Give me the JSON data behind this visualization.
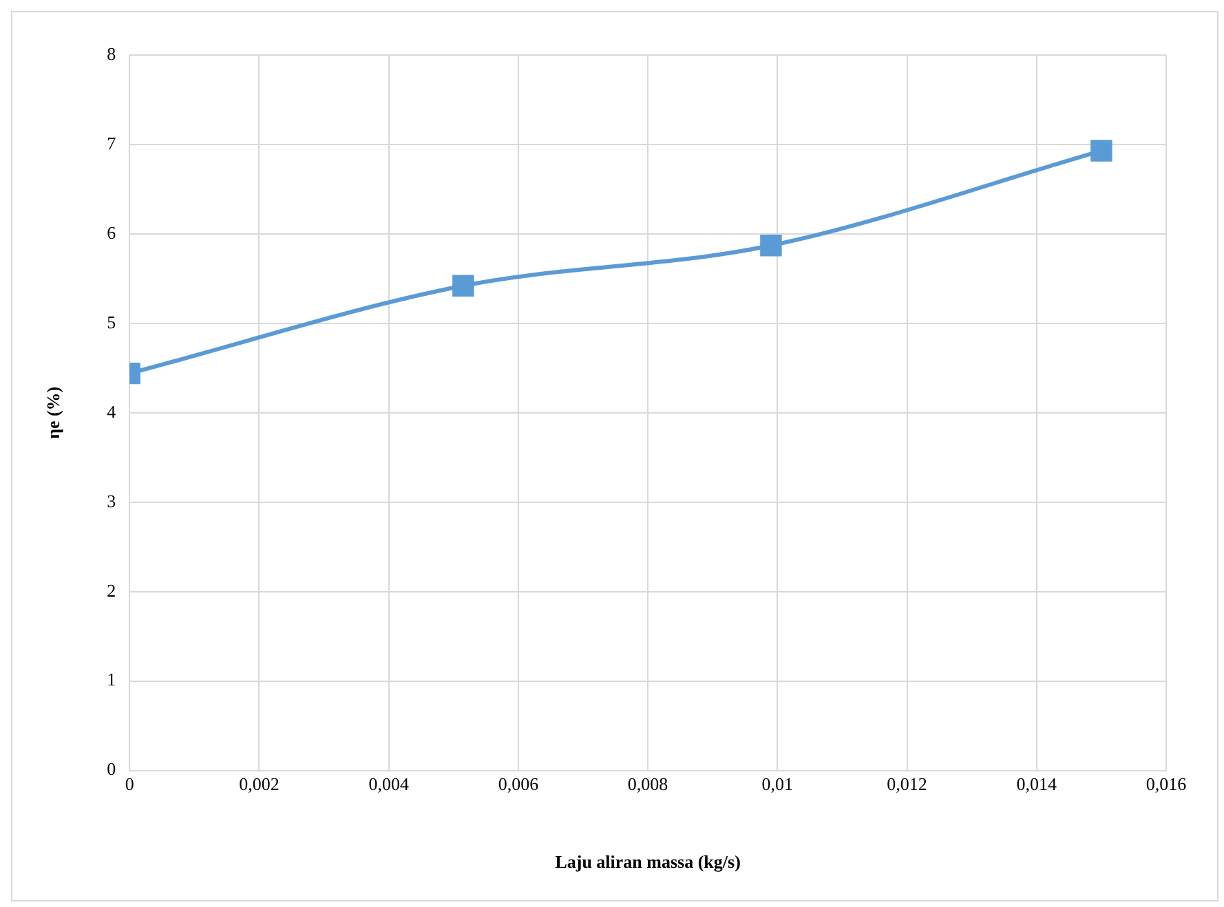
{
  "chart_data": {
    "type": "line",
    "xlabel": "Laju aliran massa (kg/s)",
    "ylabel": "ηe (%)",
    "series": [
      {
        "color": "#5b9bd5",
        "x": [
          0,
          0.00515,
          0.0099,
          0.015
        ],
        "values": [
          4.44,
          5.42,
          5.87,
          6.93
        ]
      }
    ],
    "xlim": [
      0,
      0.016
    ],
    "xticks": [
      0,
      {
        "value": 0.002,
        "label": "0,002"
      },
      {
        "value": 0.004,
        "label": "0,004"
      },
      {
        "value": 0.006,
        "label": "0,006"
      },
      {
        "value": 0.008,
        "label": "0,008"
      },
      {
        "value": 0.01,
        "label": "0,01"
      },
      {
        "value": 0.012,
        "label": "0,012"
      },
      {
        "value": 0.014,
        "label": "0,014"
      },
      {
        "value": 0.016,
        "label": "0,016"
      }
    ],
    "ylim": [
      0,
      8
    ],
    "yticks": [
      0,
      1,
      2,
      3,
      4,
      5,
      6,
      7,
      8
    ],
    "grid": true,
    "legend": false,
    "marker": "square",
    "line_style": "solid"
  }
}
